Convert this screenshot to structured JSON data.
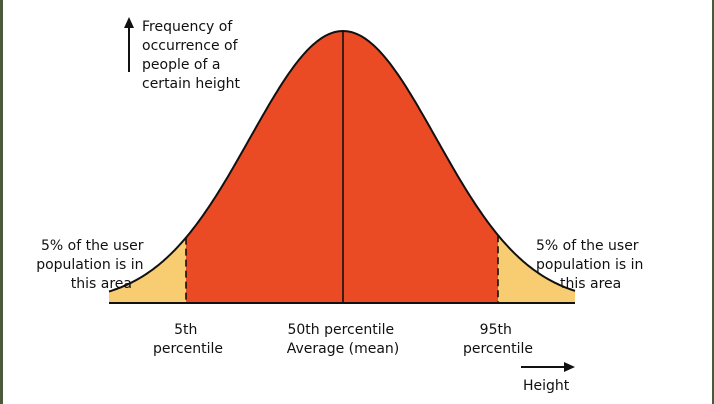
{
  "y_axis_label": [
    "Frequency of",
    "occurrence of",
    "people of a",
    "certain height"
  ],
  "x_axis_label": "Height",
  "left_area_label": [
    "5% of the user",
    "population is in",
    "this area"
  ],
  "right_area_label": [
    "5% of the user",
    "population is in",
    "this area"
  ],
  "percentiles": {
    "p5": [
      "5th",
      "percentile"
    ],
    "p50": [
      "50th percentile",
      "Average (mean)"
    ],
    "p95": [
      "95th",
      "percentile"
    ]
  },
  "colors": {
    "tail_fill": "#f8cd72",
    "center_fill": "#ea4b25",
    "curve": "#111111",
    "frame": "#4a5a3a"
  }
}
